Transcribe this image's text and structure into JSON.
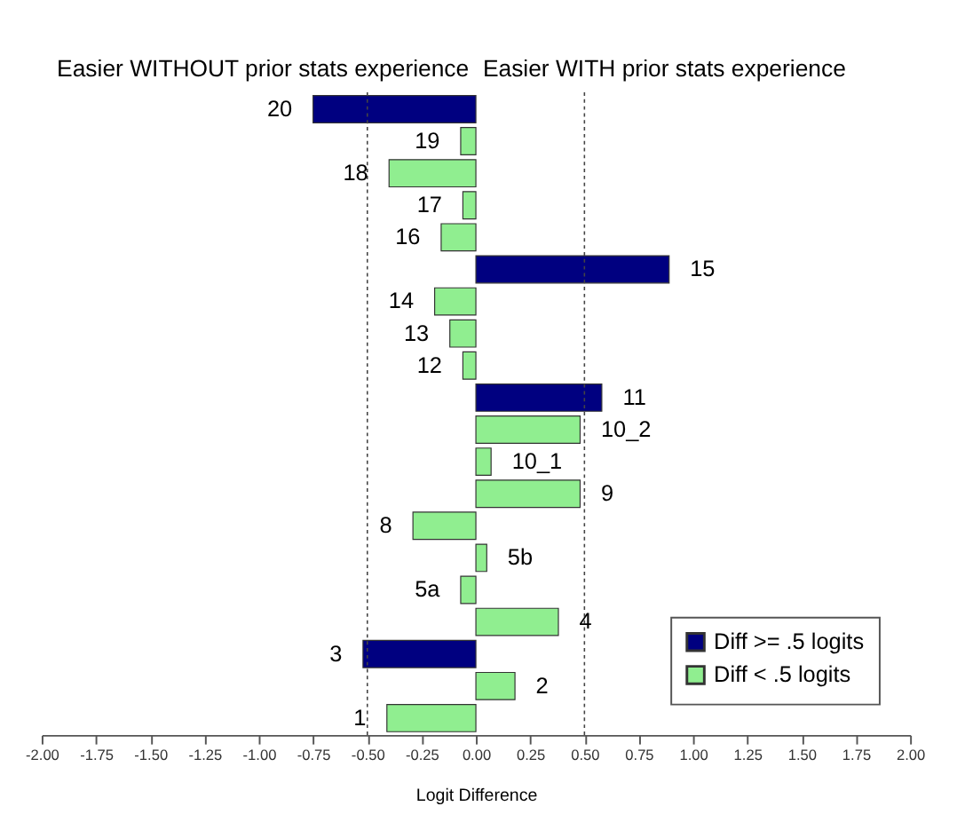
{
  "chart_data": {
    "type": "bar",
    "orientation": "horizontal",
    "xlabel": "Logit Difference",
    "categories": [
      "20",
      "19",
      "18",
      "17",
      "16",
      "15",
      "14",
      "13",
      "12",
      "11",
      "10_2",
      "10_1",
      "9",
      "8",
      "5b",
      "5a",
      "4",
      "3",
      "2",
      "1"
    ],
    "series": [
      {
        "name": "Diff >= .5 logits",
        "color": "#000080",
        "values": [
          -0.75,
          null,
          null,
          null,
          null,
          0.89,
          null,
          null,
          null,
          0.58,
          null,
          null,
          null,
          null,
          null,
          null,
          null,
          -0.52,
          null,
          null
        ]
      },
      {
        "name": "Diff < .5 logits",
        "color": "#90ee90",
        "values": [
          null,
          -0.07,
          -0.4,
          -0.06,
          -0.16,
          null,
          -0.19,
          -0.12,
          -0.06,
          null,
          0.48,
          0.07,
          0.48,
          -0.29,
          0.05,
          -0.07,
          0.38,
          null,
          0.18,
          -0.41
        ]
      }
    ],
    "xlim": [
      -2,
      2
    ],
    "xticks": [
      {
        "value": -2,
        "label": "-2.00"
      },
      {
        "value": -1.75,
        "label": "-1.75"
      },
      {
        "value": -1.5,
        "label": "-1.50"
      },
      {
        "value": -1.25,
        "label": "-1.25"
      },
      {
        "value": -1,
        "label": "-1.00"
      },
      {
        "value": -0.75,
        "label": "-0.75"
      },
      {
        "value": -0.5,
        "label": "-0.50"
      },
      {
        "value": -0.25,
        "label": "-0.25"
      },
      {
        "value": 0,
        "label": "0.00"
      },
      {
        "value": 0.25,
        "label": "0.25"
      },
      {
        "value": 0.5,
        "label": "0.50"
      },
      {
        "value": 0.75,
        "label": "0.75"
      },
      {
        "value": 1,
        "label": "1.00"
      },
      {
        "value": 1.25,
        "label": "1.25"
      },
      {
        "value": 1.5,
        "label": "1.50"
      },
      {
        "value": 1.75,
        "label": "1.75"
      },
      {
        "value": 2,
        "label": "2.00"
      }
    ],
    "ref_lines": [
      {
        "axis": "x",
        "value": -0.5,
        "line_style": "dotted"
      },
      {
        "axis": "x",
        "value": 0.5,
        "line_style": "dotted"
      }
    ],
    "annotations": [
      "Easier WITHOUT prior stats experience",
      "Easier WITH prior stats experience"
    ],
    "legend": "bottom right",
    "grid": false
  }
}
